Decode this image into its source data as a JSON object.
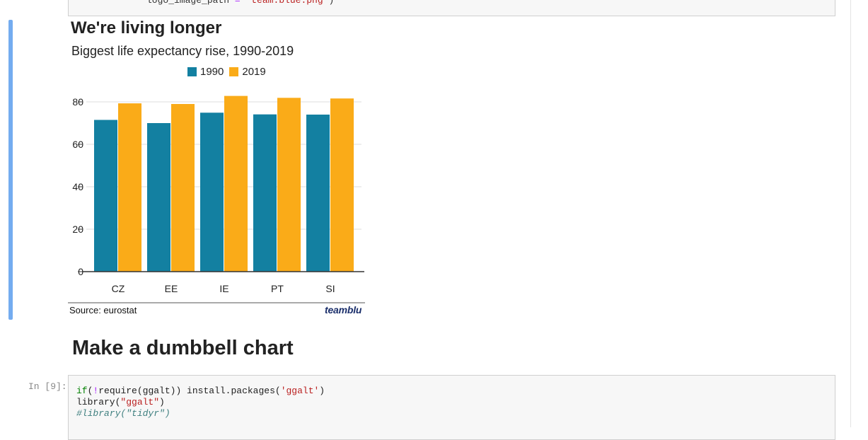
{
  "previous_cell": {
    "line_key": "logo_image_path",
    "line_eq": " = ",
    "line_value": "'team.blue.png'",
    "line_close": ")"
  },
  "output": {
    "title": "We're living longer",
    "subtitle": "Biggest life expectancy rise, 1990-2019",
    "source": "Source: eurostat",
    "logo_text": "teamblu"
  },
  "chart_data": {
    "type": "bar",
    "title": "We're living longer",
    "subtitle": "Biggest life expectancy rise, 1990-2019",
    "categories": [
      "CZ",
      "EE",
      "IE",
      "PT",
      "SI"
    ],
    "series": [
      {
        "name": "1990",
        "values": [
          71.5,
          70.0,
          74.9,
          74.1,
          74.0
        ],
        "color": "#1380a1"
      },
      {
        "name": "2019",
        "values": [
          79.3,
          79.0,
          82.8,
          81.9,
          81.6
        ],
        "color": "#faab18"
      }
    ],
    "yticks": [
      0,
      20,
      40,
      60,
      80
    ],
    "ylim": [
      0,
      85
    ],
    "xlabel": "",
    "ylabel": "",
    "grid": true,
    "legend_position": "top"
  },
  "markdown": {
    "heading": "Make a dumbbell chart"
  },
  "code_cell": {
    "prompt": "In [9]:",
    "line1": {
      "a": "if",
      "b": "(",
      "c": "!",
      "d": "require(ggalt)) install.packages(",
      "e": "'ggalt'",
      "f": ")"
    },
    "line2": {
      "a": "library(",
      "b": "\"ggalt\"",
      "c": ")"
    },
    "line3": "#library(\"tidyr\")"
  }
}
